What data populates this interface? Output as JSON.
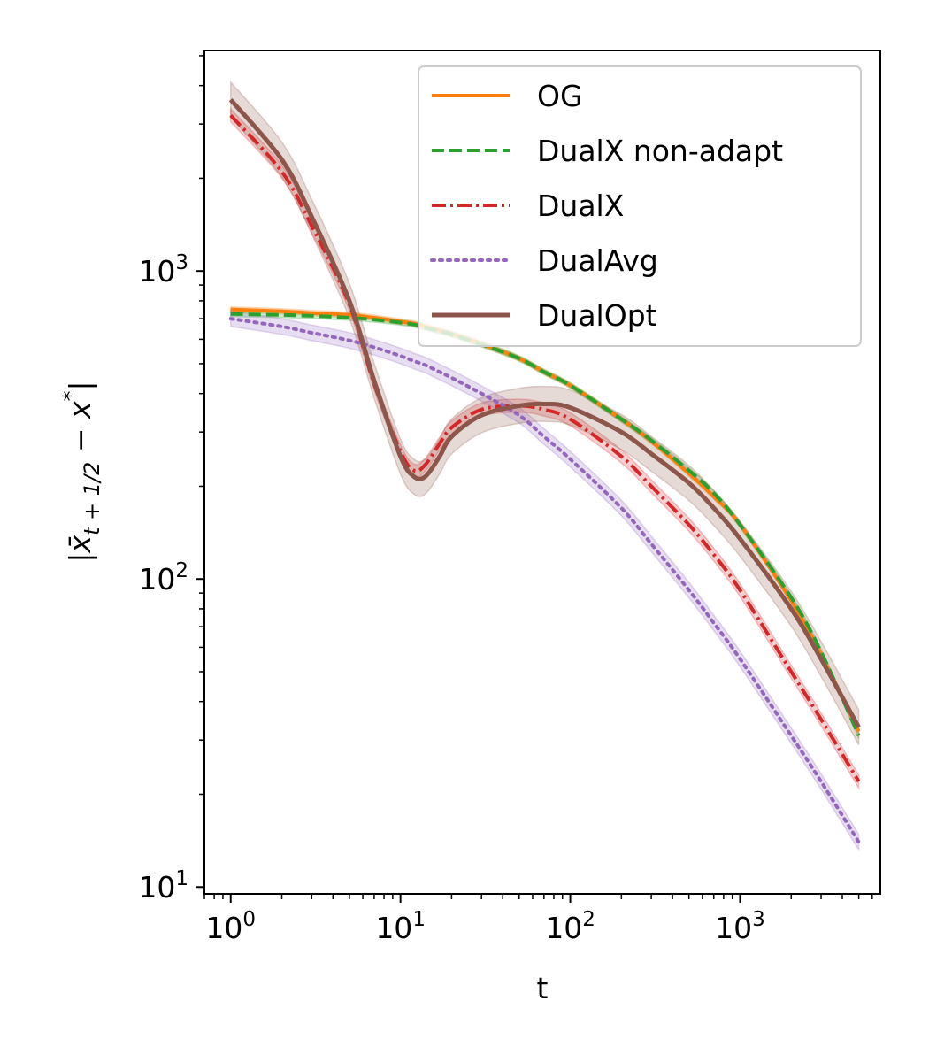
{
  "chart_data": {
    "type": "line",
    "title": "",
    "xlabel": "t",
    "ylabel": "|x̄_{t+1/2} − x*|",
    "x_scale": "log",
    "y_scale": "log",
    "xlim": [
      0.7,
      6700
    ],
    "ylim": [
      9.5,
      5200
    ],
    "x_ticks": [
      {
        "value": 1,
        "base": "10",
        "exp": "0"
      },
      {
        "value": 10,
        "base": "10",
        "exp": "1"
      },
      {
        "value": 100,
        "base": "10",
        "exp": "2"
      },
      {
        "value": 1000,
        "base": "10",
        "exp": "3"
      }
    ],
    "y_ticks": [
      {
        "value": 10,
        "base": "10",
        "exp": "1"
      },
      {
        "value": 100,
        "base": "10",
        "exp": "2"
      },
      {
        "value": 1000,
        "base": "10",
        "exp": "3"
      }
    ],
    "legend_position": "top-right",
    "grid": false,
    "x": [
      1,
      2,
      3,
      5,
      7,
      10,
      12,
      14,
      17,
      20,
      30,
      50,
      70,
      100,
      200,
      300,
      500,
      700,
      1000,
      2000,
      3000,
      5000
    ],
    "series": [
      {
        "name": "OG",
        "color": "#ff7f0e",
        "style": "solid",
        "values": [
          750,
          740,
          730,
          720,
          705,
          685,
          675,
          660,
          640,
          625,
          580,
          520,
          470,
          425,
          330,
          280,
          220,
          185,
          150,
          85,
          57,
          32
        ],
        "band_rel": 0.02
      },
      {
        "name": "DualX non-adapt",
        "color": "#2ca02c",
        "style": "dashed",
        "values": [
          725,
          720,
          715,
          705,
          695,
          680,
          670,
          655,
          638,
          622,
          578,
          520,
          470,
          425,
          330,
          282,
          225,
          190,
          150,
          87,
          58,
          31
        ],
        "band_rel": 0.02
      },
      {
        "name": "DualX",
        "color": "#d62728",
        "style": "dashdot",
        "values": [
          3200,
          2100,
          1400,
          780,
          430,
          260,
          225,
          235,
          275,
          310,
          355,
          365,
          355,
          330,
          250,
          200,
          150,
          120,
          92,
          50,
          35,
          22
        ],
        "band_rel": 0.05
      },
      {
        "name": "DualAvg",
        "color": "#9467bd",
        "style": "dotted",
        "values": [
          700,
          660,
          630,
          595,
          565,
          530,
          510,
          495,
          470,
          450,
          400,
          340,
          290,
          245,
          170,
          130,
          92,
          72,
          55,
          31,
          22,
          14
        ],
        "band_rel": 0.06
      },
      {
        "name": "DualOpt",
        "color": "#8c564b",
        "style": "solid",
        "values": [
          3600,
          2300,
          1500,
          800,
          440,
          250,
          215,
          215,
          250,
          290,
          340,
          365,
          370,
          360,
          300,
          255,
          205,
          170,
          135,
          80,
          55,
          33
        ],
        "band_rel": 0.14
      }
    ]
  }
}
